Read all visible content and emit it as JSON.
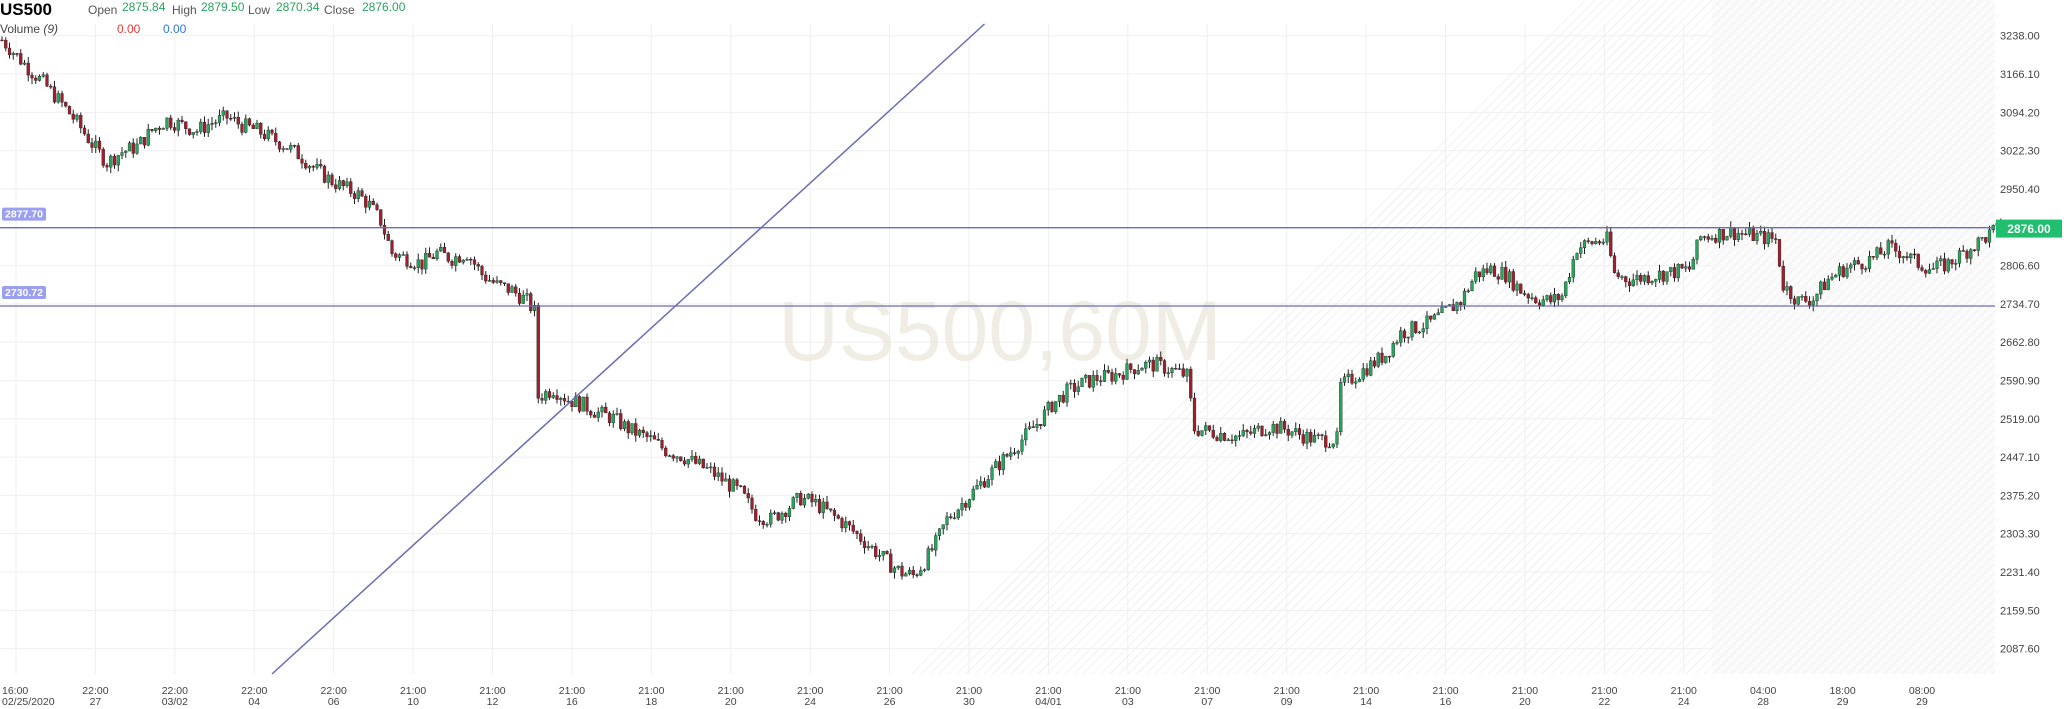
{
  "header": {
    "symbol": "US500",
    "open_label": "Open",
    "open_value": "2875.84",
    "high_label": "High",
    "high_value": "2879.50",
    "low_label": "Low",
    "low_value": "2870.34",
    "close_label": "Close",
    "close_value": "2876.00",
    "volume_label": "Volume",
    "volume_param": "(9)",
    "volume_value_1": "0.00",
    "volume_value_2": "0.00"
  },
  "watermark": "US500,60M",
  "colors": {
    "up": "#26a65b",
    "down": "#a01f2d",
    "line": "#6a6cb6",
    "label_bg": "#9b9ff0",
    "price_tag": "#1fbf6e",
    "grid": "#efefef"
  },
  "chart_data": {
    "type": "candlestick",
    "symbol": "US500",
    "timeframe": "60M",
    "y_range": [
      2040,
      3260
    ],
    "y_ticks": [
      "3238.00",
      "3166.10",
      "3094.20",
      "3022.30",
      "2950.40",
      "2806.60",
      "2734.70",
      "2662.80",
      "2590.90",
      "2519.00",
      "2447.10",
      "2375.20",
      "2303.30",
      "2231.40",
      "2159.50",
      "2087.60"
    ],
    "current_price": "2876.00",
    "horizontal_lines": [
      {
        "label": "2877.70",
        "value": 2877.7
      },
      {
        "label": "2730.72",
        "value": 2730.72
      }
    ],
    "trendline": {
      "from": {
        "bar": 72,
        "price": 2040
      },
      "to": {
        "bar": 262,
        "price": 3260
      }
    },
    "x_labels": [
      {
        "time": "16:00",
        "date": "02/25/2020"
      },
      {
        "time": "22:00",
        "date": "27"
      },
      {
        "time": "22:00",
        "date": "03/02"
      },
      {
        "time": "22:00",
        "date": "04"
      },
      {
        "time": "22:00",
        "date": "06"
      },
      {
        "time": "21:00",
        "date": "10"
      },
      {
        "time": "21:00",
        "date": "12"
      },
      {
        "time": "21:00",
        "date": "16"
      },
      {
        "time": "21:00",
        "date": "18"
      },
      {
        "time": "21:00",
        "date": "20"
      },
      {
        "time": "21:00",
        "date": "24"
      },
      {
        "time": "21:00",
        "date": "26"
      },
      {
        "time": "21:00",
        "date": "30"
      },
      {
        "time": "21:00",
        "date": "04/01"
      },
      {
        "time": "21:00",
        "date": "03"
      },
      {
        "time": "21:00",
        "date": "07"
      },
      {
        "time": "21:00",
        "date": "09"
      },
      {
        "time": "21:00",
        "date": "14"
      },
      {
        "time": "21:00",
        "date": "16"
      },
      {
        "time": "21:00",
        "date": "20"
      },
      {
        "time": "21:00",
        "date": "22"
      },
      {
        "time": "21:00",
        "date": "24"
      },
      {
        "time": "04:00",
        "date": "28"
      },
      {
        "time": "18:00",
        "date": "29"
      },
      {
        "time": "08:00",
        "date": "29"
      }
    ],
    "anchors": [
      [
        0,
        3230
      ],
      [
        4,
        3200
      ],
      [
        8,
        3170
      ],
      [
        11,
        3150
      ],
      [
        16,
        3110
      ],
      [
        20,
        3075
      ],
      [
        24,
        3035
      ],
      [
        28,
        3000
      ],
      [
        32,
        3020
      ],
      [
        36,
        3030
      ],
      [
        40,
        3060
      ],
      [
        44,
        3080
      ],
      [
        48,
        3070
      ],
      [
        52,
        3060
      ],
      [
        56,
        3075
      ],
      [
        60,
        3085
      ],
      [
        64,
        3070
      ],
      [
        68,
        3060
      ],
      [
        72,
        3045
      ],
      [
        76,
        3030
      ],
      [
        80,
        3010
      ],
      [
        84,
        2985
      ],
      [
        88,
        2965
      ],
      [
        92,
        2950
      ],
      [
        95,
        2940
      ],
      [
        98,
        2920
      ],
      [
        101,
        2890
      ],
      [
        104,
        2830
      ],
      [
        108,
        2820
      ],
      [
        112,
        2810
      ],
      [
        116,
        2830
      ],
      [
        120,
        2820
      ],
      [
        124,
        2830
      ],
      [
        128,
        2790
      ],
      [
        132,
        2770
      ],
      [
        136,
        2760
      ],
      [
        140,
        2740
      ],
      [
        142,
        2720
      ],
      [
        143,
        2560
      ],
      [
        147,
        2575
      ],
      [
        151,
        2555
      ],
      [
        155,
        2545
      ],
      [
        159,
        2530
      ],
      [
        163,
        2520
      ],
      [
        167,
        2500
      ],
      [
        170,
        2490
      ],
      [
        173,
        2480
      ],
      [
        177,
        2460
      ],
      [
        181,
        2450
      ],
      [
        185,
        2435
      ],
      [
        189,
        2420
      ],
      [
        193,
        2400
      ],
      [
        197,
        2380
      ],
      [
        201,
        2340
      ],
      [
        205,
        2330
      ],
      [
        209,
        2350
      ],
      [
        213,
        2370
      ],
      [
        217,
        2360
      ],
      [
        221,
        2340
      ],
      [
        225,
        2320
      ],
      [
        229,
        2295
      ],
      [
        233,
        2270
      ],
      [
        237,
        2245
      ],
      [
        240,
        2230
      ],
      [
        243,
        2225
      ],
      [
        246,
        2250
      ],
      [
        249,
        2285
      ],
      [
        252,
        2330
      ],
      [
        256,
        2360
      ],
      [
        260,
        2390
      ],
      [
        264,
        2420
      ],
      [
        268,
        2450
      ],
      [
        272,
        2480
      ],
      [
        276,
        2510
      ],
      [
        280,
        2545
      ],
      [
        284,
        2570
      ],
      [
        288,
        2585
      ],
      [
        292,
        2595
      ],
      [
        296,
        2600
      ],
      [
        300,
        2610
      ],
      [
        304,
        2620
      ],
      [
        308,
        2620
      ],
      [
        312,
        2610
      ],
      [
        316,
        2600
      ],
      [
        318,
        2500
      ],
      [
        322,
        2495
      ],
      [
        326,
        2490
      ],
      [
        330,
        2485
      ],
      [
        334,
        2495
      ],
      [
        338,
        2505
      ],
      [
        342,
        2500
      ],
      [
        346,
        2490
      ],
      [
        350,
        2480
      ],
      [
        356,
        2480
      ],
      [
        357,
        2580
      ],
      [
        361,
        2600
      ],
      [
        365,
        2620
      ],
      [
        369,
        2640
      ],
      [
        373,
        2680
      ],
      [
        377,
        2690
      ],
      [
        381,
        2700
      ],
      [
        385,
        2720
      ],
      [
        389,
        2740
      ],
      [
        393,
        2790
      ],
      [
        397,
        2800
      ],
      [
        401,
        2790
      ],
      [
        405,
        2760
      ],
      [
        409,
        2745
      ],
      [
        413,
        2740
      ],
      [
        416,
        2750
      ],
      [
        420,
        2840
      ],
      [
        424,
        2850
      ],
      [
        428,
        2855
      ],
      [
        430,
        2790
      ],
      [
        434,
        2780
      ],
      [
        438,
        2785
      ],
      [
        442,
        2790
      ],
      [
        446,
        2795
      ],
      [
        450,
        2800
      ],
      [
        453,
        2860
      ],
      [
        457,
        2865
      ],
      [
        461,
        2870
      ],
      [
        465,
        2865
      ],
      [
        469,
        2860
      ],
      [
        473,
        2855
      ],
      [
        475,
        2770
      ],
      [
        479,
        2740
      ],
      [
        483,
        2745
      ],
      [
        487,
        2780
      ],
      [
        491,
        2800
      ],
      [
        495,
        2810
      ],
      [
        499,
        2820
      ],
      [
        503,
        2840
      ],
      [
        507,
        2830
      ],
      [
        511,
        2810
      ],
      [
        515,
        2800
      ],
      [
        519,
        2810
      ],
      [
        523,
        2830
      ],
      [
        527,
        2850
      ],
      [
        531,
        2870
      ],
      [
        533,
        2876
      ]
    ]
  }
}
